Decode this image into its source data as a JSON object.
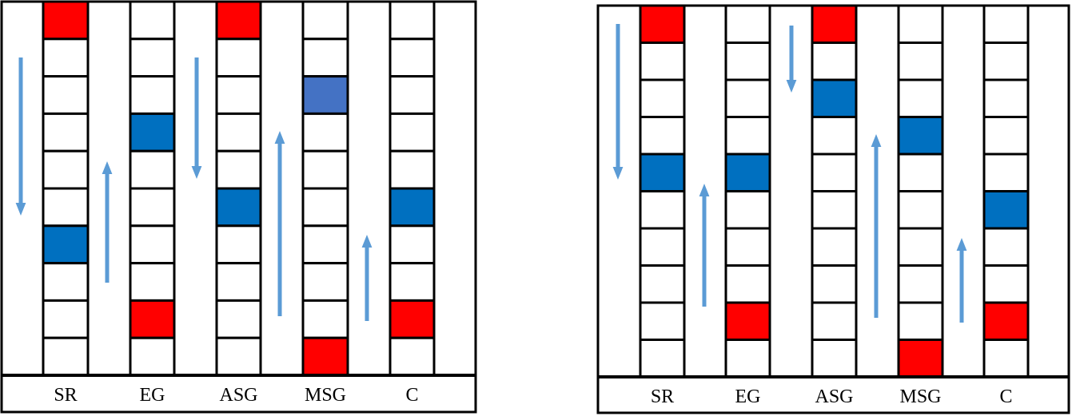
{
  "colors": {
    "red": "#ff0000",
    "blue": "#0070c0",
    "blue_light": "#4472c4",
    "arrow": "#5b9bd5",
    "border": "#000000"
  },
  "panels": [
    {
      "columns": [
        {
          "label": "SR",
          "red_rows": [
            0
          ],
          "blue_rows": [
            6
          ],
          "light_blue_rows": []
        },
        {
          "label": "EG",
          "red_rows": [
            8
          ],
          "blue_rows": [
            3
          ],
          "light_blue_rows": []
        },
        {
          "label": "ASG",
          "red_rows": [
            0
          ],
          "blue_rows": [
            5
          ],
          "light_blue_rows": []
        },
        {
          "label": "MSG",
          "red_rows": [
            9
          ],
          "blue_rows": [],
          "light_blue_rows": [
            2
          ]
        },
        {
          "label": "C",
          "red_rows": [
            8
          ],
          "blue_rows": [
            5
          ],
          "light_blue_rows": []
        }
      ],
      "arrows": [
        {
          "gap": "left",
          "direction": "down"
        },
        {
          "gap": "SR-EG",
          "direction": "up"
        },
        {
          "gap": "EG-ASG",
          "direction": "down"
        },
        {
          "gap": "ASG-MSG",
          "direction": "up"
        },
        {
          "gap": "MSG-C",
          "direction": "up"
        }
      ]
    },
    {
      "columns": [
        {
          "label": "SR",
          "red_rows": [
            0
          ],
          "blue_rows": [
            4
          ],
          "light_blue_rows": []
        },
        {
          "label": "EG",
          "red_rows": [
            8
          ],
          "blue_rows": [
            4
          ],
          "light_blue_rows": []
        },
        {
          "label": "ASG",
          "red_rows": [
            0
          ],
          "blue_rows": [
            2
          ],
          "light_blue_rows": []
        },
        {
          "label": "MSG",
          "red_rows": [
            9
          ],
          "blue_rows": [
            3
          ],
          "light_blue_rows": []
        },
        {
          "label": "C",
          "red_rows": [
            8
          ],
          "blue_rows": [
            5
          ],
          "light_blue_rows": []
        }
      ],
      "arrows": [
        {
          "gap": "left",
          "direction": "down"
        },
        {
          "gap": "SR-EG",
          "direction": "up"
        },
        {
          "gap": "EG-ASG",
          "direction": "down"
        },
        {
          "gap": "ASG-MSG",
          "direction": "up"
        },
        {
          "gap": "MSG-C",
          "direction": "up"
        }
      ]
    }
  ]
}
